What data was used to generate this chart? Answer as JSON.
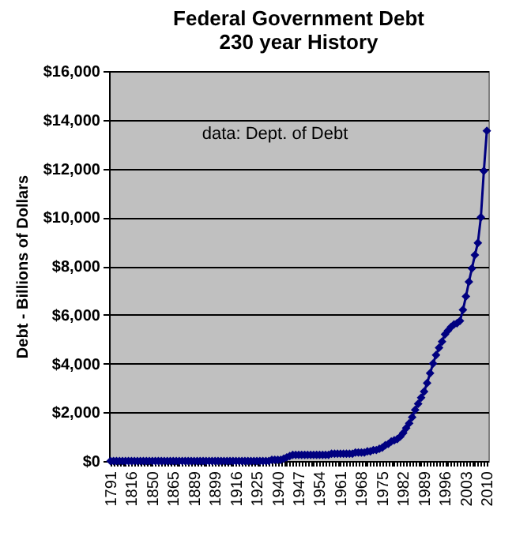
{
  "chart_data": {
    "type": "line",
    "title": "Federal Government Debt",
    "subtitle": "230 year History",
    "ylabel": "Debt - Billions of Dollars",
    "annotations": [
      "data:  Dept. of Debt"
    ],
    "categories": [
      "1791",
      null,
      null,
      null,
      null,
      null,
      null,
      "1816",
      null,
      null,
      null,
      null,
      null,
      null,
      "1850",
      null,
      null,
      null,
      null,
      null,
      null,
      "1865",
      null,
      null,
      null,
      null,
      null,
      null,
      "1889",
      null,
      null,
      null,
      null,
      null,
      null,
      "1899",
      null,
      null,
      null,
      null,
      null,
      null,
      "1916",
      null,
      null,
      null,
      null,
      null,
      null,
      "1925",
      null,
      null,
      null,
      null,
      null,
      null,
      "1940",
      null,
      null,
      null,
      null,
      null,
      null,
      "1947",
      null,
      null,
      null,
      null,
      null,
      null,
      "1954",
      null,
      null,
      null,
      null,
      null,
      null,
      "1961",
      null,
      null,
      null,
      null,
      null,
      null,
      "1968",
      null,
      null,
      null,
      null,
      null,
      null,
      "1975",
      null,
      null,
      null,
      null,
      null,
      null,
      "1982",
      null,
      null,
      null,
      null,
      null,
      null,
      "1989",
      null,
      null,
      null,
      null,
      null,
      null,
      "1996",
      null,
      null,
      null,
      null,
      null,
      null,
      "2003",
      null,
      null,
      null,
      null,
      null,
      null,
      "2010"
    ],
    "series": [
      {
        "color": "#000080",
        "values": [
          0,
          0,
          0,
          0,
          0,
          0,
          0,
          0,
          0,
          0,
          0,
          0,
          0,
          0,
          0,
          0,
          0,
          0,
          0,
          0,
          0,
          0,
          0,
          0,
          0,
          0,
          0,
          0,
          0,
          0,
          0,
          0,
          0,
          0,
          0,
          0,
          0,
          0,
          0,
          0,
          0,
          0,
          0,
          0,
          0,
          0,
          0,
          0,
          0,
          0,
          0,
          0,
          0,
          0,
          50,
          50,
          50,
          50,
          100,
          150,
          200,
          250,
          250,
          250,
          250,
          250,
          250,
          250,
          250,
          250,
          250,
          250,
          250,
          250,
          300,
          300,
          300,
          300,
          300,
          300,
          300,
          300,
          350,
          350,
          350,
          350,
          400,
          400,
          450,
          450,
          500,
          550,
          650,
          700,
          800,
          850,
          900,
          1000,
          1150,
          1350,
          1550,
          1800,
          2100,
          2350,
          2600,
          2850,
          3200,
          3600,
          4000,
          4350,
          4650,
          4900,
          5200,
          5350,
          5500,
          5600,
          5650,
          5750,
          6200,
          6750,
          7350,
          7900,
          8450,
          8950,
          10000,
          11900,
          13550
        ]
      }
    ],
    "ylim": [
      0,
      16000
    ],
    "yticks": [
      {
        "value": 0,
        "label": "$0"
      },
      {
        "value": 2000,
        "label": "$2,000"
      },
      {
        "value": 4000,
        "label": "$4,000"
      },
      {
        "value": 6000,
        "label": "$6,000"
      },
      {
        "value": 8000,
        "label": "$8,000"
      },
      {
        "value": 10000,
        "label": "$10,000"
      },
      {
        "value": 12000,
        "label": "$12,000"
      },
      {
        "value": 14000,
        "label": "$14,000"
      },
      {
        "value": 16000,
        "label": "$16,000"
      }
    ],
    "grid": "y",
    "marker": "diamond",
    "line_style": "solid"
  }
}
